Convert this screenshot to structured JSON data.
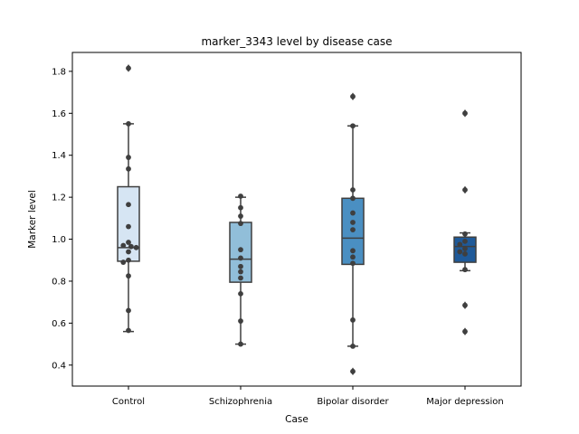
{
  "chart_data": {
    "type": "box",
    "title": "marker_3343 level by disease case",
    "xlabel": "Case",
    "ylabel": "Marker level",
    "ylim": [
      0.3,
      1.89
    ],
    "yticks": [
      0.4,
      0.6,
      0.8,
      1.0,
      1.2,
      1.4,
      1.6,
      1.8
    ],
    "ytick_labels": [
      "0.4",
      "0.6",
      "0.8",
      "1.0",
      "1.2",
      "1.4",
      "1.6",
      "1.8"
    ],
    "grid": false,
    "legend": "none",
    "categories": [
      "Control",
      "Schizophrenia",
      "Bipolar disorder",
      "Major depression"
    ],
    "colors": [
      "#d6e5f3",
      "#91bed9",
      "#4a8fc2",
      "#1f5a99"
    ],
    "boxes": [
      {
        "category": "Control",
        "q1": 0.895,
        "median": 0.96,
        "q3": 1.25,
        "whisker_low": 0.56,
        "whisker_high": 1.55,
        "outliers": [
          1.815
        ]
      },
      {
        "category": "Schizophrenia",
        "q1": 0.795,
        "median": 0.905,
        "q3": 1.08,
        "whisker_low": 0.5,
        "whisker_high": 1.2,
        "outliers": []
      },
      {
        "category": "Bipolar disorder",
        "q1": 0.88,
        "median": 1.005,
        "q3": 1.195,
        "whisker_low": 0.49,
        "whisker_high": 1.54,
        "outliers": [
          1.68,
          0.37
        ]
      },
      {
        "category": "Major depression",
        "q1": 0.89,
        "median": 0.965,
        "q3": 1.01,
        "whisker_low": 0.85,
        "whisker_high": 1.03,
        "outliers": [
          1.6,
          1.235,
          0.685,
          0.56
        ]
      }
    ],
    "points": [
      {
        "category": "Control",
        "values": [
          1.815,
          1.55,
          1.39,
          1.335,
          1.165,
          1.06,
          0.985,
          0.97,
          0.965,
          0.96,
          0.94,
          0.9,
          0.89,
          0.825,
          0.66,
          0.565
        ]
      },
      {
        "category": "Schizophrenia",
        "values": [
          1.205,
          1.15,
          1.11,
          1.075,
          0.95,
          0.91,
          0.87,
          0.845,
          0.815,
          0.74,
          0.61,
          0.5
        ]
      },
      {
        "category": "Bipolar disorder",
        "values": [
          1.68,
          1.54,
          1.235,
          1.195,
          1.125,
          1.08,
          1.045,
          0.945,
          0.915,
          0.885,
          0.615,
          0.49,
          0.37
        ]
      },
      {
        "category": "Major depression",
        "values": [
          1.6,
          1.235,
          1.025,
          0.99,
          0.975,
          0.955,
          0.94,
          0.93,
          0.855,
          0.685,
          0.56
        ]
      }
    ]
  }
}
